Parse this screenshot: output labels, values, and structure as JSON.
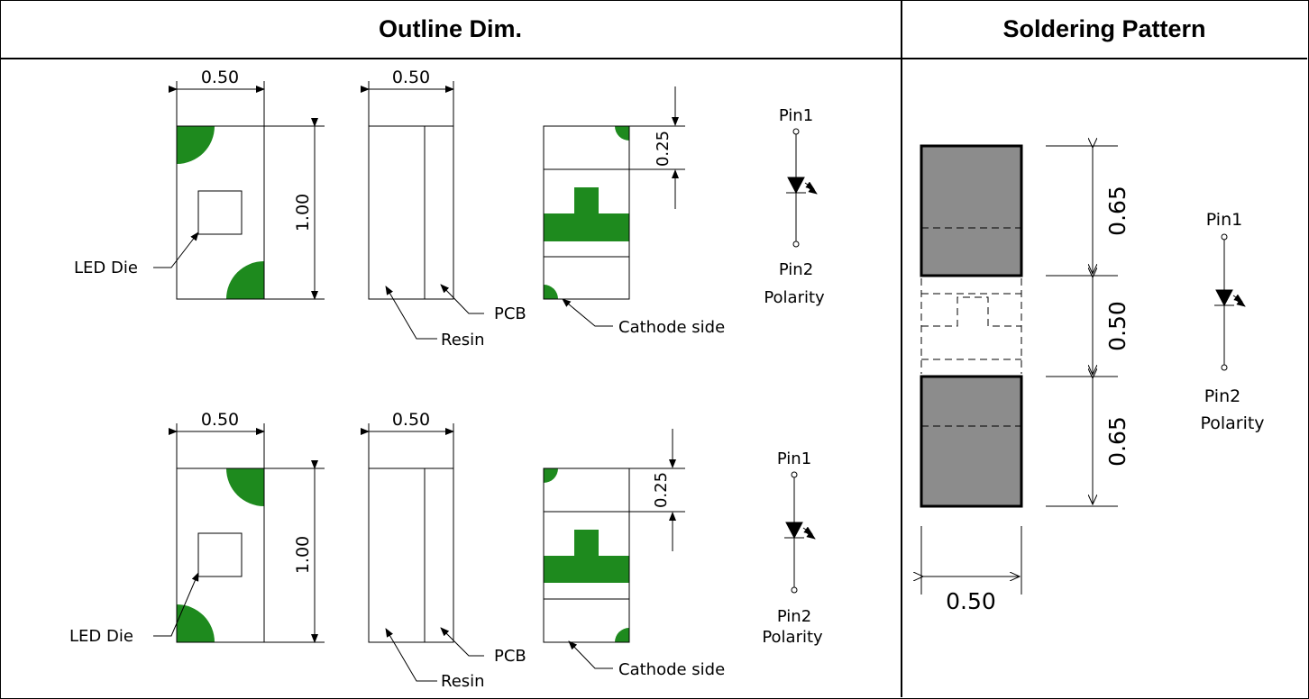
{
  "headers": {
    "outline": "Outline Dim.",
    "soldering": "Soldering Pattern"
  },
  "outline": {
    "width_dim": "0.50",
    "length_dim": "1.00",
    "cap_dim": "0.25",
    "led_die": "LED Die",
    "resin": "Resin",
    "pcb": "PCB",
    "cathode_side": "Cathode side",
    "pin1": "Pin1",
    "pin2": "Pin2",
    "polarity": "Polarity"
  },
  "soldering": {
    "pad_dim": "0.65",
    "gap_dim": "0.50",
    "width_dim": "0.50",
    "pin1": "Pin1",
    "pin2": "Pin2",
    "polarity": "Polarity"
  },
  "colors": {
    "green": "#1e8a1e",
    "pad": "#8c8c8c"
  }
}
